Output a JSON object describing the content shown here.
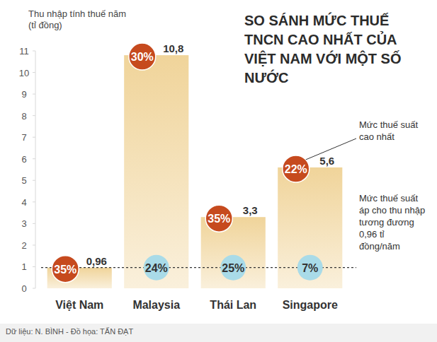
{
  "chart_data": {
    "type": "bar",
    "title": "SO SÁNH MỨC THUẾ TNCN CAO NHẤT CỦA VIỆT NAM VỚI MỘT SỐ NƯỚC",
    "y_label": "Thu nhập tính thuế năm (tỉ đồng)",
    "categories": [
      "Việt Nam",
      "Malaysia",
      "Thái Lan",
      "Singapore"
    ],
    "values": [
      0.96,
      10.8,
      3.3,
      5.6
    ],
    "value_labels": [
      "0,96",
      "10,8",
      "3,3",
      "5,6"
    ],
    "color": "#f0d49a",
    "ylim": [
      0,
      11
    ],
    "yticks": [
      0,
      1,
      2,
      3,
      4,
      5,
      6,
      7,
      8,
      9,
      10,
      11
    ],
    "grid": false,
    "data_labels": true,
    "max_rates": [
      35,
      30,
      35,
      22
    ],
    "max_rate_labels": [
      "35%",
      "30%",
      "35%",
      "22%"
    ],
    "reference_value": 0.96,
    "reference_rates": [
      null,
      24,
      25,
      7
    ],
    "reference_rate_labels": [
      null,
      "24%",
      "25%",
      "7%"
    ],
    "annotations": [
      "Mức thuế suất cao nhất",
      "Mức thuế suất áp cho thu nhập tương đương 0,96 tỉ đồng/năm"
    ],
    "source": "Dữ liệu: N. BÌNH - Đồ họa: TẤN ĐẠT"
  }
}
